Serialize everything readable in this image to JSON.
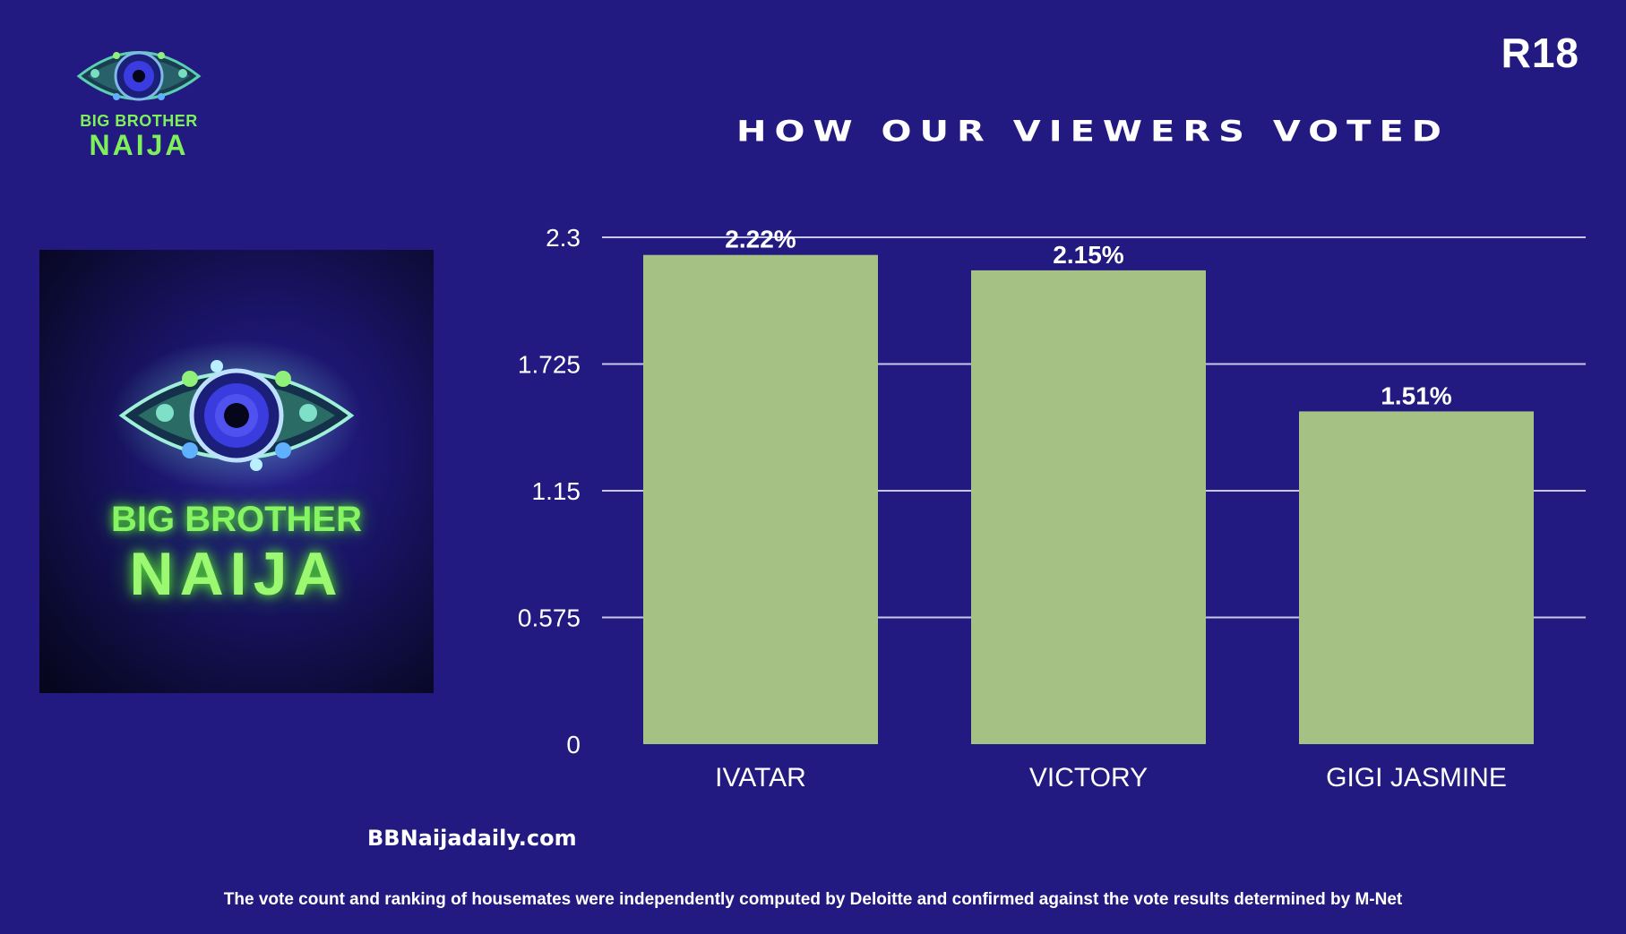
{
  "branding": {
    "logo_line1": "BIG BROTHER",
    "logo_line2": "NAIJA",
    "rating": "R18",
    "website": "BBNaijadaily.com"
  },
  "footer": {
    "disclaimer": "The vote count and ranking of housemates were independently computed by Deloitte and confirmed against the vote results determined by M-Net"
  },
  "colors": {
    "background": "#221a80",
    "bar": "#a6c184",
    "logo_green": "#86f463",
    "eye_blue": "#3a3ce0"
  },
  "chart_data": {
    "type": "bar",
    "title": "HOW OUR VIEWERS VOTED",
    "categories": [
      "IVATAR",
      "VICTORY",
      "GIGI JASMINE"
    ],
    "values": [
      2.22,
      2.15,
      1.51
    ],
    "value_labels": [
      "2.22%",
      "2.15%",
      "1.51%"
    ],
    "yticks": [
      "0",
      "0.575",
      "1.15",
      "1.725",
      "2.3"
    ],
    "ylim": [
      0,
      2.3
    ],
    "grid": true,
    "xlabel": "",
    "ylabel": ""
  }
}
